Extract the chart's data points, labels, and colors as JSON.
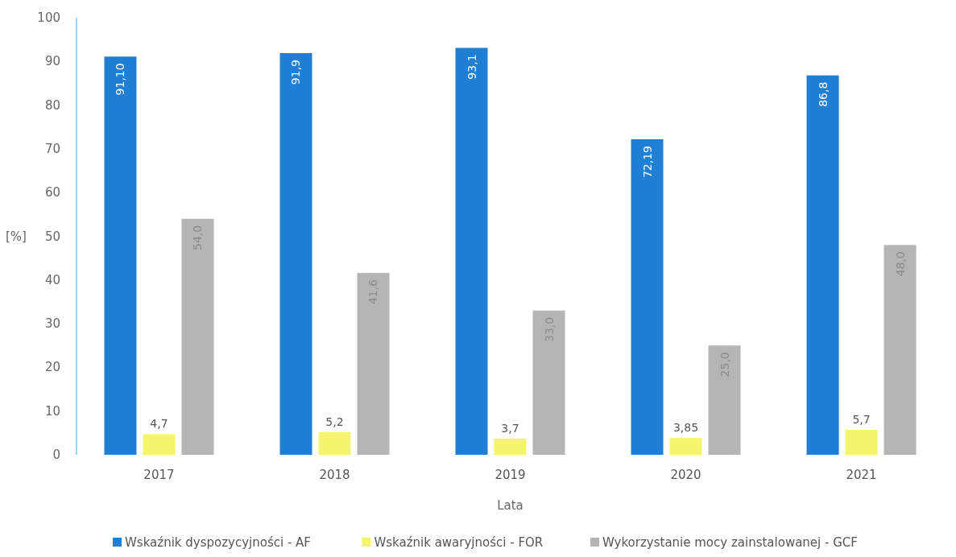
{
  "chart_data": {
    "type": "bar",
    "xlabel": "Lata",
    "ylabel": "[%]",
    "categories": [
      "2017",
      "2018",
      "2019",
      "2020",
      "2021"
    ],
    "series": [
      {
        "name": "Wskaźnik dyspozycyjności - AF",
        "color": "#1f7fd4",
        "values": [
          91.1,
          91.9,
          93.1,
          72.19,
          86.8
        ],
        "value_labels": [
          "91,10",
          "91,9",
          "93,1",
          "72,19",
          "86,8"
        ]
      },
      {
        "name": "Wskaźnik awaryjności - FOR",
        "color": "#f4f56b",
        "values": [
          4.7,
          5.2,
          3.7,
          3.85,
          5.7
        ],
        "value_labels": [
          "4,7",
          "5,2",
          "3,7",
          "3,85",
          "5,7"
        ]
      },
      {
        "name": "Wykorzystanie mocy zainstalowanej - GCF",
        "color": "#b5b5b5",
        "values": [
          54.0,
          41.6,
          33.0,
          25.0,
          48.0
        ],
        "value_labels": [
          "54,0",
          "41,6",
          "33,0",
          "25,0",
          "48,0"
        ]
      }
    ],
    "ylim": [
      0,
      100
    ],
    "yticks": [
      0,
      10,
      20,
      30,
      40,
      50,
      60,
      70,
      80,
      90,
      100
    ],
    "grid": false,
    "legend": "bottom"
  }
}
